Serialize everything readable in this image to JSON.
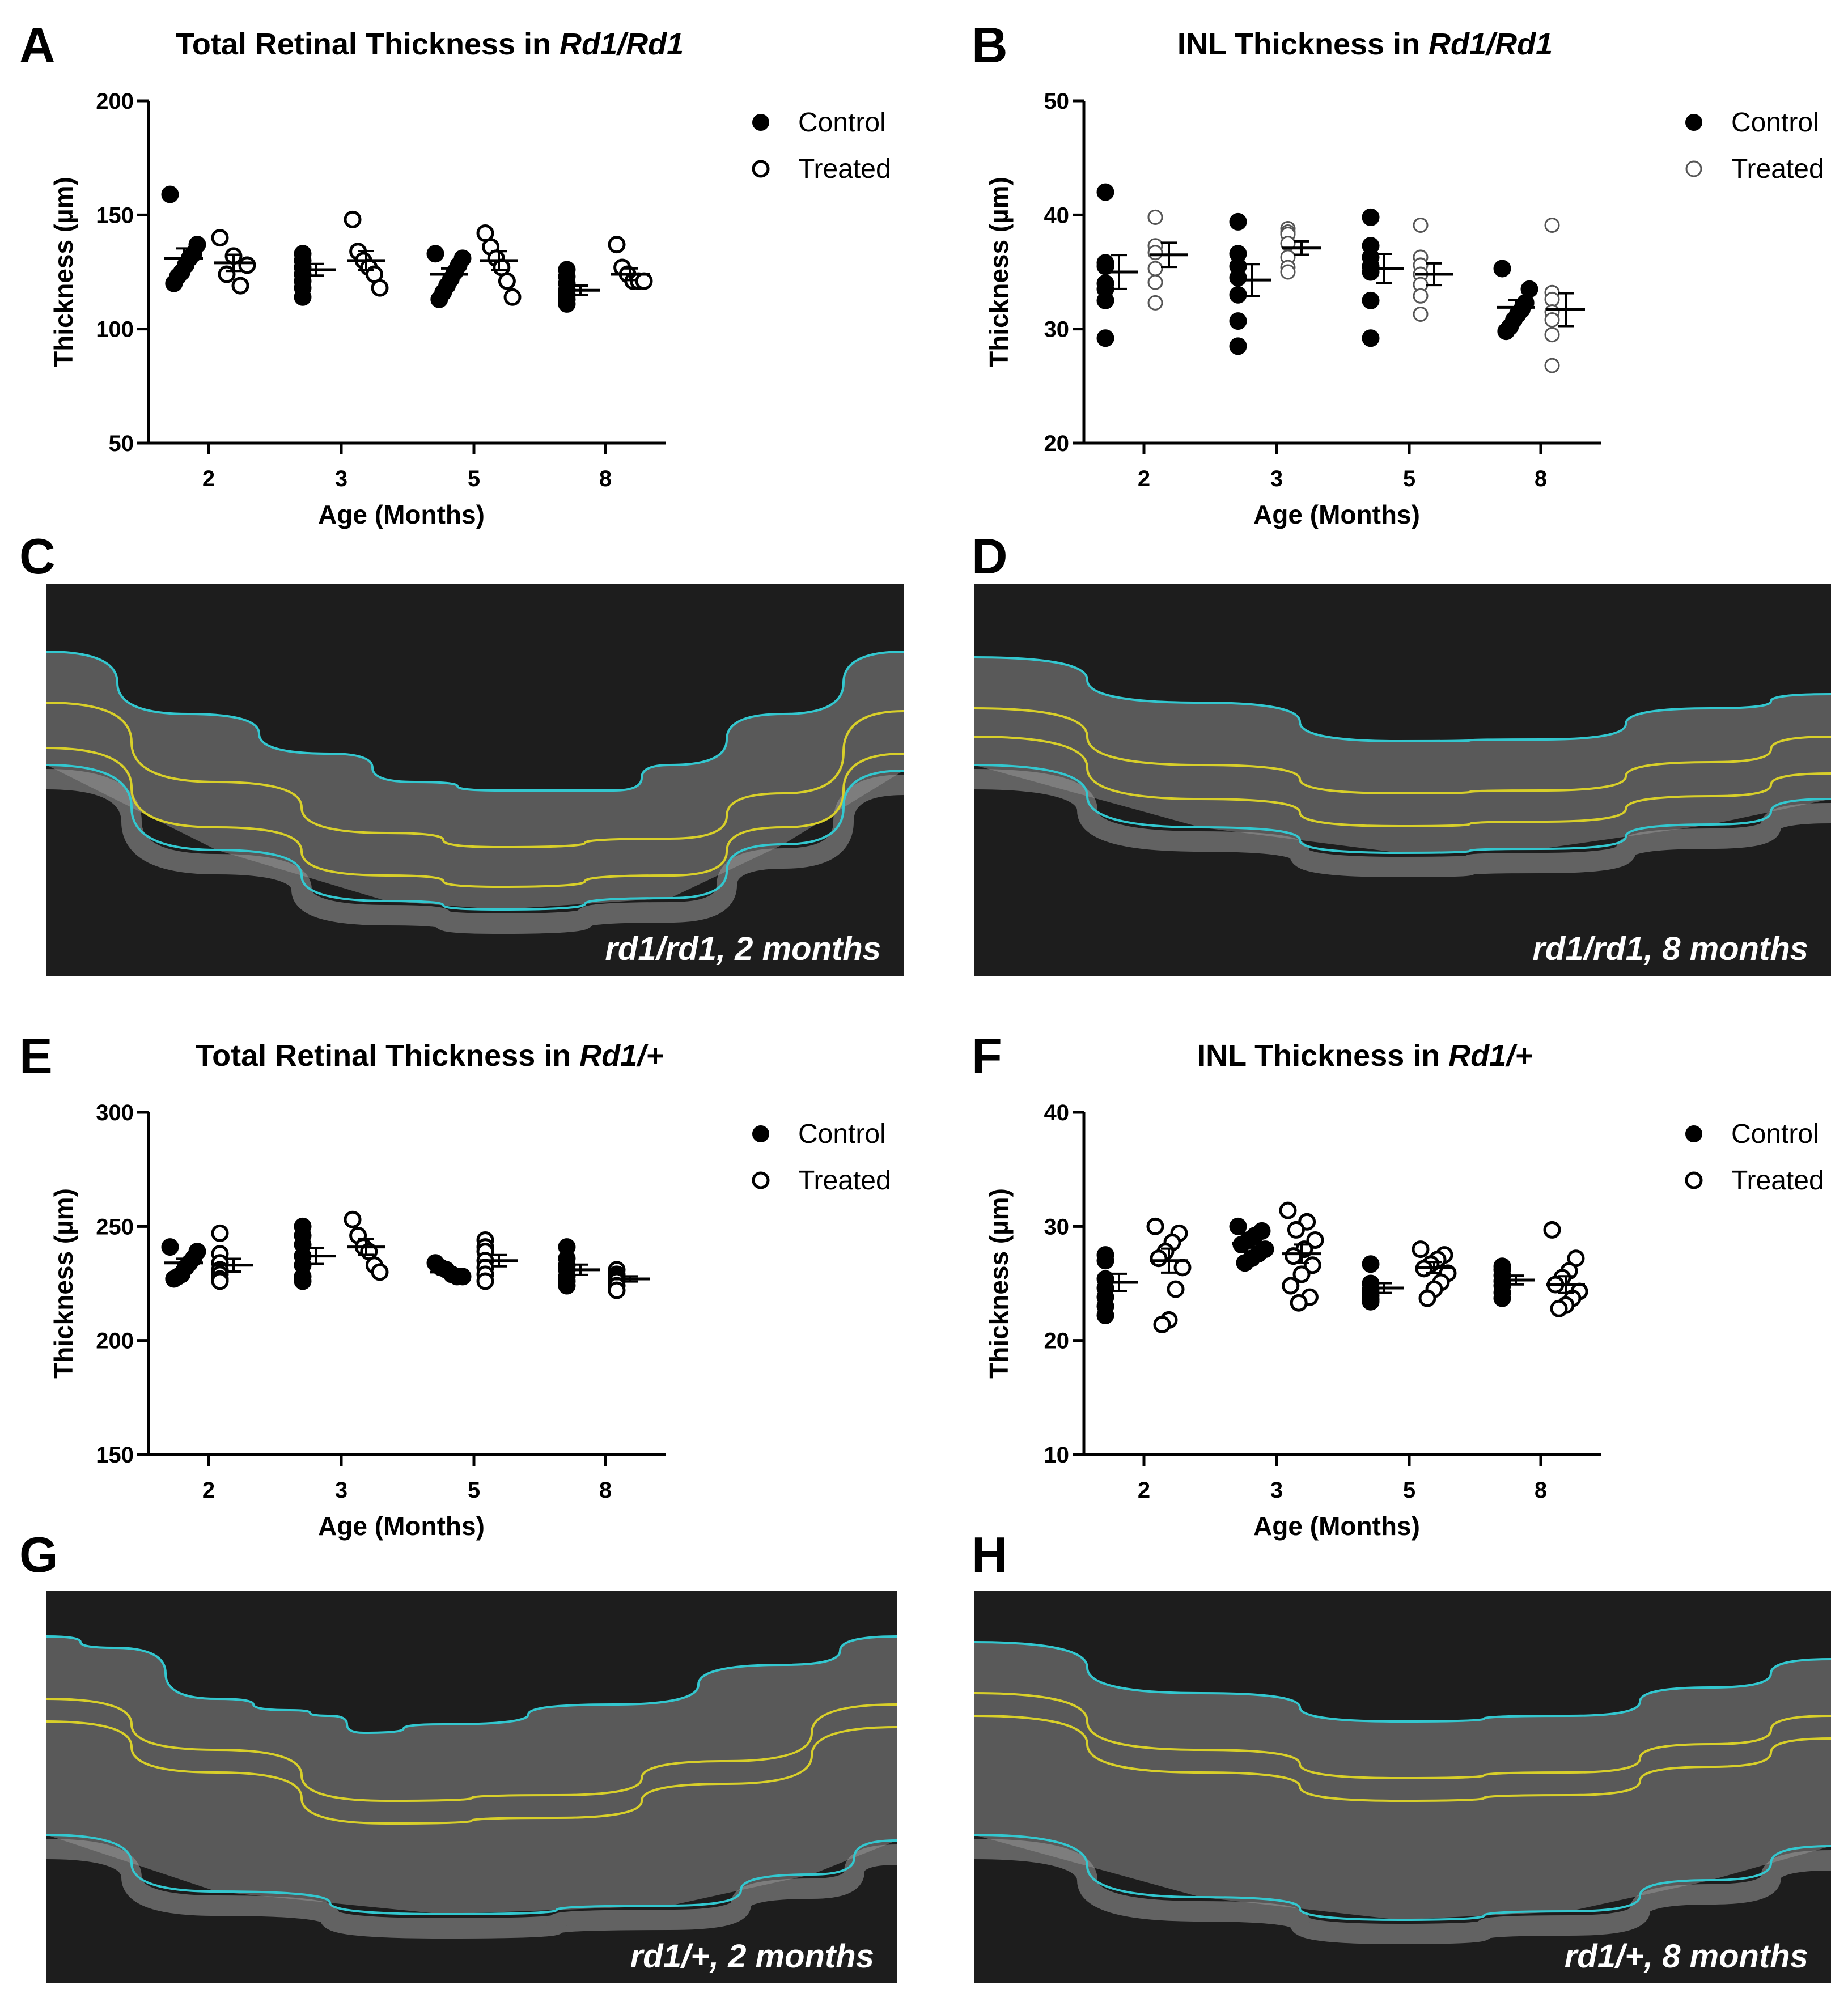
{
  "panel_letters": {
    "A": "A",
    "B": "B",
    "C": "C",
    "D": "D",
    "E": "E",
    "F": "F",
    "G": "G",
    "H": "H"
  },
  "colors": {
    "control_fill": "#000000",
    "treated_fill": "#ffffff",
    "treated_faint_stroke": "#555555",
    "oct_background": "#1d1d1d",
    "boundary_outer": "#33c7cf",
    "boundary_inner": "#d8cf2a"
  },
  "chart_data": [
    {
      "id": "A",
      "type": "scatter",
      "title_plain": "Total Retinal Thickness in ",
      "title_italic": "Rd1/Rd1",
      "xlabel": "Age (Months)",
      "ylabel": "Thickness (µm)",
      "categories": [
        "2",
        "3",
        "5",
        "8"
      ],
      "ylim": [
        50,
        200
      ],
      "yticks": [
        "50",
        "100",
        "150",
        "200"
      ],
      "legend": {
        "control": "Control",
        "treated": "Treated",
        "position": "top-right"
      },
      "series": [
        {
          "name": "Control",
          "marker": "filled",
          "values": [
            [
              159,
              137,
              133,
              131,
              128,
              125,
              123,
              120
            ],
            [
              133,
              130,
              127,
              124,
              121,
              118,
              114
            ],
            [
              133,
              131,
              128,
              125,
              122,
              119,
              116,
              113
            ],
            [
              126,
              123,
              120,
              117,
              115,
              113,
              111
            ]
          ],
          "mean": [
            131,
            126,
            124,
            117
          ]
        },
        {
          "name": "Treated",
          "marker": "open",
          "values": [
            [
              140,
              132,
              128,
              124,
              119
            ],
            [
              148,
              134,
              130,
              127,
              124,
              118
            ],
            [
              142,
              136,
              131,
              127,
              121,
              114
            ],
            [
              137,
              127,
              124,
              121,
              121,
              121
            ]
          ],
          "mean": [
            129,
            130,
            130,
            124
          ]
        }
      ]
    },
    {
      "id": "B",
      "type": "scatter",
      "title_plain": "INL Thickness in ",
      "title_italic": "Rd1/Rd1",
      "xlabel": "Age (Months)",
      "ylabel": "Thickness (µm)",
      "categories": [
        "2",
        "3",
        "5",
        "8"
      ],
      "ylim": [
        20,
        50
      ],
      "yticks": [
        "20",
        "30",
        "40",
        "50"
      ],
      "legend": {
        "control": "Control",
        "treated": "Treated",
        "position": "top-right"
      },
      "series": [
        {
          "name": "Control",
          "marker": "filled",
          "values": [
            [
              42,
              35.8,
              35.5,
              34,
              33.5,
              32.5,
              29.2
            ],
            [
              39.4,
              36.6,
              35.5,
              34.5,
              33,
              30.7,
              28.5
            ],
            [
              39.8,
              37.3,
              36.3,
              35.5,
              35,
              32.5,
              29.2
            ],
            [
              35.3,
              33.5,
              32.3,
              31.7,
              31.3,
              30.8,
              30.2,
              29.8
            ]
          ],
          "mean": [
            35,
            34.3,
            35.3,
            31.9
          ]
        },
        {
          "name": "Treated",
          "marker": "open",
          "faint": true,
          "values": [
            [
              39.8,
              39.8,
              37.3,
              36.7,
              35.3,
              34.1,
              32.3
            ],
            [
              38.8,
              38.5,
              38.3,
              37.5,
              36.3,
              35.4,
              35
            ],
            [
              39.1,
              36.3,
              35.6,
              34.8,
              33.9,
              32.9,
              31.3
            ],
            [
              39.1,
              33.2,
              32.6,
              31.5,
              30.8,
              29.5,
              26.8
            ]
          ],
          "mean": [
            36.5,
            37.1,
            34.8,
            31.7
          ]
        }
      ]
    },
    {
      "id": "E",
      "type": "scatter",
      "title_plain": "Total Retinal Thickness in ",
      "title_italic": "Rd1/+",
      "xlabel": "Age (Months)",
      "ylabel": "Thickness (µm)",
      "categories": [
        "2",
        "3",
        "5",
        "8"
      ],
      "ylim": [
        150,
        300
      ],
      "yticks": [
        "150",
        "200",
        "250",
        "300"
      ],
      "legend": {
        "control": "Control",
        "treated": "Treated",
        "position": "top-right"
      },
      "series": [
        {
          "name": "Control",
          "marker": "filled",
          "values": [
            [
              241,
              239,
              236,
              234,
              232,
              229,
              228,
              227
            ],
            [
              250,
              246,
              242,
              237,
              233,
              228,
              226
            ],
            [
              234,
              232,
              231,
              229,
              228,
              228
            ],
            [
              241,
              236,
              233,
              231,
              228,
              226,
              224
            ]
          ],
          "mean": [
            234,
            237,
            230,
            231
          ]
        },
        {
          "name": "Treated",
          "marker": "open",
          "values": [
            [
              247,
              238,
              234,
              231,
              229,
              227,
              226
            ],
            [
              253,
              246,
              241,
              239,
              233,
              230
            ],
            [
              244,
              241,
              239,
              235,
              232,
              229,
              226
            ],
            [
              231,
              229,
              228,
              227,
              226,
              224,
              222
            ]
          ],
          "mean": [
            233,
            241,
            235,
            227
          ]
        }
      ]
    },
    {
      "id": "F",
      "type": "scatter",
      "title_plain": "INL Thickness in ",
      "title_italic": "Rd1/+",
      "xlabel": "Age (Months)",
      "ylabel": "Thickness (µm)",
      "categories": [
        "2",
        "3",
        "5",
        "8"
      ],
      "ylim": [
        10,
        40
      ],
      "yticks": [
        "10",
        "20",
        "30",
        "40"
      ],
      "legend": {
        "control": "Control",
        "treated": "Treated",
        "position": "top-right"
      },
      "series": [
        {
          "name": "Control",
          "marker": "filled",
          "values": [
            [
              27.5,
              27,
              25.4,
              24.6,
              23.8,
              23,
              22.2
            ],
            [
              30,
              29.6,
              29.2,
              28.8,
              28.4,
              28,
              27.6,
              27.2,
              26.8
            ],
            [
              26.7,
              25,
              24.5,
              24.2,
              23.9,
              23.6,
              23.4
            ],
            [
              26.5,
              26.2,
              25.7,
              25.2,
              24.8,
              24.2,
              23.7
            ]
          ],
          "mean": [
            25.1,
            28.5,
            24.6,
            25.3
          ]
        },
        {
          "name": "Treated",
          "marker": "open",
          "values": [
            [
              30,
              29.4,
              28.6,
              27.8,
              27.2,
              26.4,
              24.5,
              21.8,
              21.4
            ],
            [
              31.4,
              30.4,
              29.7,
              28.8,
              28,
              27.4,
              26.6,
              25.8,
              24.8,
              23.8,
              23.3
            ],
            [
              28,
              27.5,
              27.1,
              26.7,
              26.3,
              25.9,
              25.1,
              24.5,
              23.7
            ],
            [
              29.7,
              27.2,
              26.1,
              25.5,
              24.9,
              24.3,
              23.7,
              23.1,
              22.8
            ]
          ],
          "mean": [
            27,
            27.6,
            26.4,
            24.9
          ]
        }
      ]
    }
  ],
  "oct_images": [
    {
      "id": "C",
      "caption": "rd1/rd1, 2 months"
    },
    {
      "id": "D",
      "caption": "rd1/rd1, 8 months"
    },
    {
      "id": "G",
      "caption": "rd1/+, 2 months"
    },
    {
      "id": "H",
      "caption": "rd1/+, 8 months"
    }
  ]
}
